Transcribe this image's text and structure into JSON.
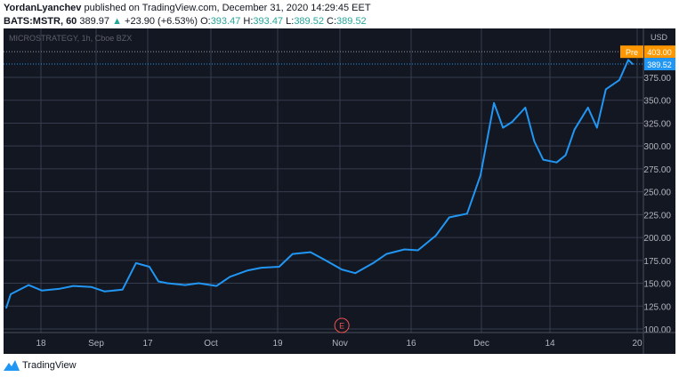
{
  "header": {
    "author": "YordanLyanchev",
    "published_text": "published on TradingView.com, December 31, 2020 14:29:45 EET",
    "symbol": "BATS:MSTR, 60",
    "last": "389.97",
    "arrow": "▲",
    "change": "+23.90 (+6.53%)",
    "o_label": "O:",
    "o_value": "393.47",
    "h_label": "H:",
    "h_value": "393.47",
    "l_label": "L:",
    "l_value": "389.52",
    "c_label": "C:",
    "c_value": "389.52"
  },
  "chart_data": {
    "type": "line",
    "watermark": "MICROSTRATEGY, 1h, Cboe BZX",
    "currency": "USD",
    "x_ticks": [
      "18",
      "Sep",
      "17",
      "Oct",
      "19",
      "Nov",
      "16",
      "Dec",
      "14",
      "20"
    ],
    "y_ticks": [
      100,
      125,
      150,
      175,
      200,
      225,
      250,
      275,
      300,
      325,
      350,
      375
    ],
    "ylim": [
      96,
      426
    ],
    "x": [
      "2020-08-13",
      "2020-08-14",
      "2020-08-18",
      "2020-08-21",
      "2020-08-25",
      "2020-08-28",
      "2020-09-01",
      "2020-09-04",
      "2020-09-08",
      "2020-09-11",
      "2020-09-14",
      "2020-09-16",
      "2020-09-18",
      "2020-09-22",
      "2020-09-25",
      "2020-09-29",
      "2020-10-02",
      "2020-10-06",
      "2020-10-09",
      "2020-10-13",
      "2020-10-16",
      "2020-10-20",
      "2020-10-23",
      "2020-10-27",
      "2020-10-30",
      "2020-11-03",
      "2020-11-06",
      "2020-11-10",
      "2020-11-13",
      "2020-11-17",
      "2020-11-20",
      "2020-11-24",
      "2020-11-27",
      "2020-11-30",
      "2020-12-02",
      "2020-12-04",
      "2020-12-07",
      "2020-12-09",
      "2020-12-11",
      "2020-12-14",
      "2020-12-16",
      "2020-12-18",
      "2020-12-21",
      "2020-12-23",
      "2020-12-25",
      "2020-12-28",
      "2020-12-30",
      "2020-12-31"
    ],
    "series": [
      {
        "color": "#2196f3",
        "values": [
          123,
          138,
          148,
          142,
          144,
          147,
          146,
          141,
          143,
          172,
          168,
          152,
          150,
          148,
          150,
          147,
          157,
          164,
          167,
          168,
          182,
          184,
          176,
          165,
          161,
          172,
          182,
          187,
          186,
          202,
          222,
          226,
          268,
          347,
          320,
          326,
          342,
          305,
          285,
          282,
          290,
          318,
          342,
          320,
          362,
          372,
          394,
          389.52
        ]
      }
    ],
    "last_price_label": "389.52",
    "pre_label": "Pre",
    "pre_price_label": "403.00",
    "pre_price": 403.0,
    "event_marker": "E",
    "event_date": "2020-10-27",
    "grid": true
  },
  "footer": {
    "brand": "TradingView"
  },
  "colors": {
    "background": "#131722",
    "grid": "#363c4e",
    "line": "#2196f3",
    "pre": "#ff9800",
    "up": "#26a69a",
    "event": "#ef5350"
  }
}
